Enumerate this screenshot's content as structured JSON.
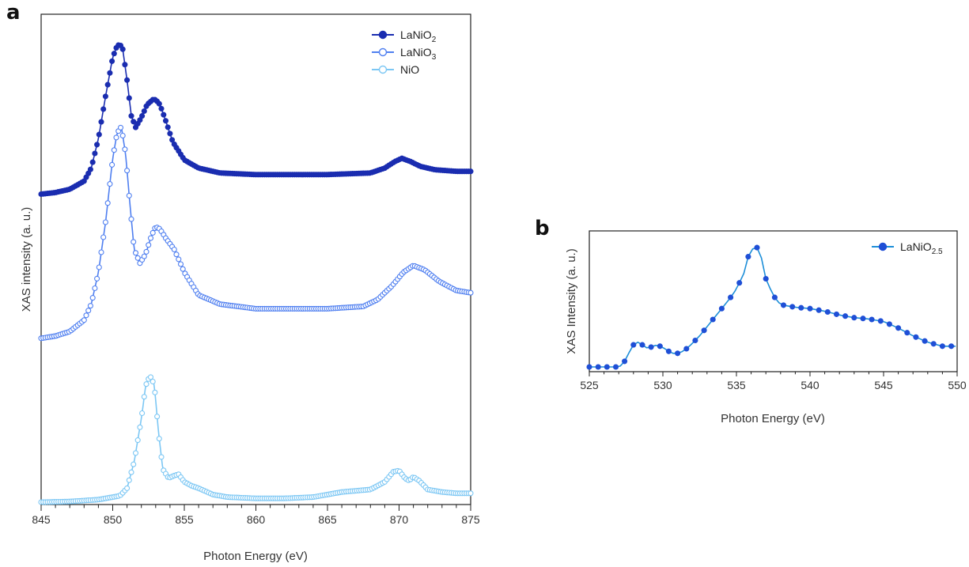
{
  "chart_data": [
    {
      "panel": "a",
      "type": "scatter",
      "xlabel": "Photon Energy (eV)",
      "ylabel": "XAS intensity (a. u.)",
      "xlim": [
        845,
        875
      ],
      "xticks": [
        845,
        850,
        855,
        860,
        865,
        870,
        875
      ],
      "y_ticks_shown": false,
      "grid": false,
      "legend_position": "top-right",
      "series": [
        {
          "name": "LaNiO2",
          "name_main": "LaNiO",
          "name_sub": "2",
          "color": "#1a2db0",
          "line_color": "#1a2db0",
          "marker_fill": true,
          "x": [
            845.0,
            846.0,
            847.0,
            848.0,
            848.5,
            849.0,
            849.5,
            850.0,
            850.3,
            850.5,
            850.7,
            851.0,
            851.3,
            851.6,
            852.0,
            852.4,
            852.8,
            853.0,
            853.3,
            853.7,
            854.2,
            855.0,
            856.0,
            857.5,
            860.0,
            865.0,
            868.0,
            869.0,
            869.7,
            870.2,
            870.8,
            871.5,
            872.5,
            874.0,
            875.0
          ],
          "y": [
            0.08,
            0.09,
            0.11,
            0.16,
            0.24,
            0.42,
            0.68,
            0.92,
            0.99,
            1.0,
            0.97,
            0.78,
            0.56,
            0.49,
            0.55,
            0.63,
            0.66,
            0.66,
            0.63,
            0.53,
            0.4,
            0.29,
            0.24,
            0.21,
            0.2,
            0.2,
            0.21,
            0.24,
            0.28,
            0.3,
            0.28,
            0.25,
            0.23,
            0.22,
            0.22
          ]
        },
        {
          "name": "LaNiO3",
          "name_main": "LaNiO",
          "name_sub": "3",
          "color": "#4f7ff0",
          "line_color": "#4f7ff0",
          "marker_fill": false,
          "x": [
            845.0,
            846.0,
            847.0,
            848.0,
            848.5,
            849.0,
            849.5,
            850.0,
            850.3,
            850.6,
            850.9,
            851.2,
            851.5,
            851.9,
            852.3,
            852.7,
            853.0,
            853.3,
            853.7,
            854.3,
            855.0,
            856.0,
            857.5,
            860.0,
            865.0,
            867.5,
            868.5,
            869.5,
            870.3,
            871.0,
            871.8,
            872.8,
            874.0,
            875.0
          ],
          "y": [
            0.07,
            0.08,
            0.1,
            0.15,
            0.22,
            0.36,
            0.58,
            0.86,
            0.97,
            1.0,
            0.88,
            0.66,
            0.46,
            0.4,
            0.44,
            0.52,
            0.56,
            0.55,
            0.51,
            0.46,
            0.36,
            0.26,
            0.22,
            0.2,
            0.2,
            0.21,
            0.24,
            0.3,
            0.36,
            0.39,
            0.37,
            0.32,
            0.28,
            0.27
          ]
        },
        {
          "name": "NiO",
          "name_main": "NiO",
          "name_sub": "",
          "color": "#7cc7f4",
          "line_color": "#7cc7f4",
          "marker_fill": false,
          "x": [
            845.0,
            847.0,
            849.0,
            850.5,
            851.0,
            851.5,
            852.0,
            852.3,
            852.6,
            852.9,
            853.2,
            853.5,
            853.9,
            854.3,
            854.6,
            855.0,
            855.5,
            856.0,
            857.0,
            858.0,
            860.0,
            862.0,
            864.0,
            866.0,
            868.0,
            869.0,
            869.6,
            870.0,
            870.4,
            870.7,
            871.0,
            871.4,
            872.0,
            873.0,
            874.0,
            875.0
          ],
          "y": [
            0.0,
            0.005,
            0.02,
            0.05,
            0.11,
            0.32,
            0.66,
            0.92,
            1.0,
            0.93,
            0.55,
            0.26,
            0.19,
            0.21,
            0.22,
            0.16,
            0.13,
            0.11,
            0.06,
            0.04,
            0.03,
            0.03,
            0.04,
            0.08,
            0.1,
            0.16,
            0.24,
            0.25,
            0.19,
            0.17,
            0.2,
            0.17,
            0.1,
            0.08,
            0.07,
            0.07
          ]
        }
      ]
    },
    {
      "panel": "b",
      "type": "scatter",
      "xlabel": "Photon Energy (eV)",
      "ylabel": "XAS Intensity (a. u.)",
      "xlim": [
        525,
        550
      ],
      "xticks": [
        525,
        530,
        535,
        540,
        545,
        550
      ],
      "y_ticks_shown": false,
      "grid": false,
      "legend_position": "top-right",
      "series": [
        {
          "name": "LaNiO2.5",
          "name_main": "LaNiO",
          "name_sub": "2.5",
          "color": "#1f4fd6",
          "line_color": "#1c8ed8",
          "marker_fill": true,
          "x": [
            525.0,
            525.5,
            526.0,
            526.5,
            527.0,
            527.3,
            527.6,
            528.0,
            528.3,
            528.6,
            529.0,
            529.3,
            529.6,
            530.0,
            530.4,
            530.8,
            531.2,
            531.6,
            532.0,
            532.5,
            533.0,
            533.5,
            534.0,
            534.5,
            535.0,
            535.5,
            535.8,
            536.1,
            536.4,
            536.7,
            537.0,
            537.5,
            538.0,
            539.0,
            540.0,
            541.0,
            542.0,
            543.0,
            544.0,
            545.0,
            546.0,
            547.0,
            548.0,
            549.0,
            550.0
          ],
          "y": [
            0.0,
            0.0,
            0.0,
            0.0,
            0.0,
            0.02,
            0.09,
            0.17,
            0.19,
            0.17,
            0.14,
            0.16,
            0.17,
            0.15,
            0.12,
            0.1,
            0.11,
            0.14,
            0.18,
            0.24,
            0.31,
            0.38,
            0.45,
            0.52,
            0.6,
            0.72,
            0.85,
            0.91,
            0.92,
            0.84,
            0.68,
            0.55,
            0.48,
            0.46,
            0.45,
            0.43,
            0.4,
            0.38,
            0.37,
            0.35,
            0.3,
            0.24,
            0.19,
            0.16,
            0.16
          ]
        }
      ]
    }
  ],
  "panels": {
    "a": {
      "label": "a"
    },
    "b": {
      "label": "b"
    }
  }
}
